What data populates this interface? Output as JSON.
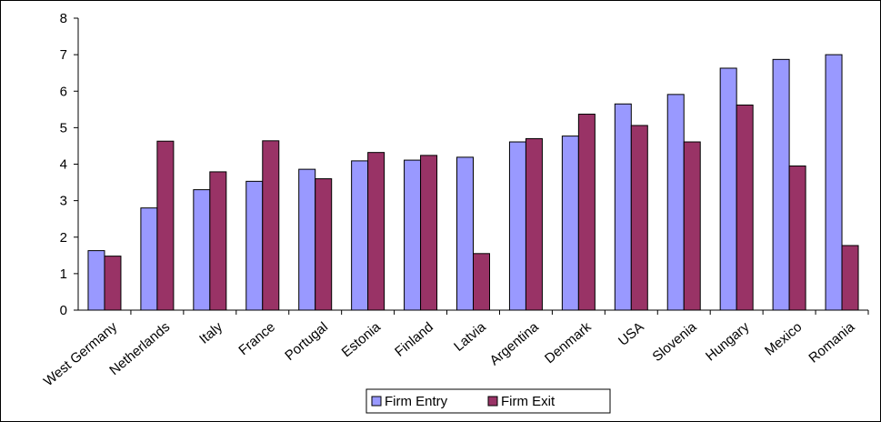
{
  "chart_data": {
    "type": "bar",
    "categories": [
      "West Germany",
      "Netherlands",
      "Italy",
      "France",
      "Portugal",
      "Estonia",
      "Finland",
      "Latvia",
      "Argentina",
      "Denmark",
      "USA",
      "Slovenia",
      "Hungary",
      "Mexico",
      "Romania"
    ],
    "series": [
      {
        "name": "Firm Entry",
        "color": "#9999ff",
        "values": [
          1.63,
          2.8,
          3.3,
          3.53,
          3.86,
          4.09,
          4.11,
          4.19,
          4.61,
          4.77,
          5.65,
          5.91,
          6.63,
          6.87,
          7.0
        ]
      },
      {
        "name": "Firm Exit",
        "color": "#993366",
        "values": [
          1.48,
          4.63,
          3.79,
          4.64,
          3.6,
          4.32,
          4.24,
          1.55,
          4.7,
          5.37,
          5.06,
          4.61,
          5.62,
          3.95,
          1.77
        ]
      }
    ],
    "title": "",
    "xlabel": "",
    "ylabel": "",
    "ylim": [
      0,
      8
    ],
    "yticks": [
      "0",
      "1",
      "2",
      "3",
      "4",
      "5",
      "6",
      "7",
      "8"
    ],
    "grid": false,
    "legend_position": "bottom"
  }
}
